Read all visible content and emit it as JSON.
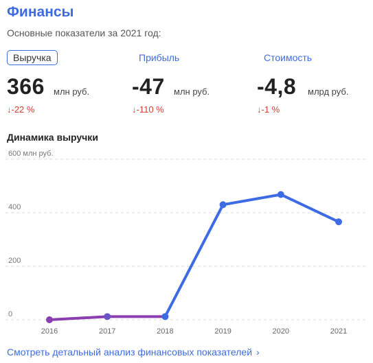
{
  "header": {
    "title": "Финансы",
    "subtitle": "Основные показатели за 2021 год:"
  },
  "tabs": [
    {
      "label": "Выручка",
      "active": true
    },
    {
      "label": "Прибыль",
      "active": false
    },
    {
      "label": "Стоимость",
      "active": false
    }
  ],
  "kpis": [
    {
      "value": "366",
      "unit": "млн руб.",
      "change": "↓-22 %"
    },
    {
      "value": "-47",
      "unit": "млн руб.",
      "change": "↓-110 %"
    },
    {
      "value": "-4,8",
      "unit": "млрд руб.",
      "change": "↓-1 %"
    }
  ],
  "section_title": "Динамика выручки",
  "chart_data": {
    "type": "line",
    "x": [
      "2016",
      "2017",
      "2018",
      "2019",
      "2020",
      "2021"
    ],
    "y_unit_label": "600 млн руб.",
    "y_ticks": [
      "600 млн руб.",
      "400",
      "200",
      "0"
    ],
    "y_tick_values": [
      600,
      400,
      200,
      0
    ],
    "ylim": [
      0,
      600
    ],
    "series": [
      {
        "values": [
          0,
          12,
          12,
          430,
          468,
          366
        ]
      }
    ],
    "colors": {
      "early": "#8a3fb0",
      "main": "#3d6be3"
    },
    "grid": true
  },
  "footer": {
    "link_label": "Смотреть детальный анализ финансовых показателей",
    "chevron": "›"
  }
}
